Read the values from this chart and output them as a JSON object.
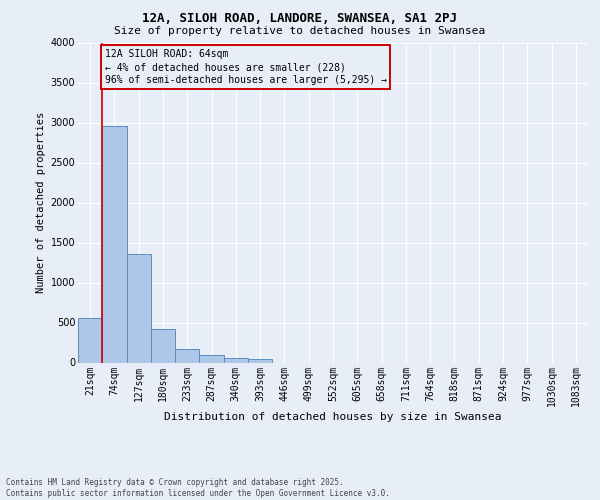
{
  "title": "12A, SILOH ROAD, LANDORE, SWANSEA, SA1 2PJ",
  "subtitle": "Size of property relative to detached houses in Swansea",
  "xlabel": "Distribution of detached houses by size in Swansea",
  "ylabel": "Number of detached properties",
  "categories": [
    "21sqm",
    "74sqm",
    "127sqm",
    "180sqm",
    "233sqm",
    "287sqm",
    "340sqm",
    "393sqm",
    "446sqm",
    "499sqm",
    "552sqm",
    "605sqm",
    "658sqm",
    "711sqm",
    "764sqm",
    "818sqm",
    "871sqm",
    "924sqm",
    "977sqm",
    "1030sqm",
    "1083sqm"
  ],
  "values": [
    560,
    2960,
    1360,
    415,
    165,
    95,
    55,
    50,
    0,
    0,
    0,
    0,
    0,
    0,
    0,
    0,
    0,
    0,
    0,
    0,
    0
  ],
  "bar_color": "#aec6e8",
  "bar_edge_color": "#5a8fc0",
  "background_color": "#e8eef7",
  "grid_color": "#ffffff",
  "annotation_box_color": "#cc0000",
  "annotation_line_color": "#cc0000",
  "annotation_text_line1": "12A SILOH ROAD: 64sqm",
  "annotation_text_line2": "← 4% of detached houses are smaller (228)",
  "annotation_text_line3": "96% of semi-detached houses are larger (5,295) →",
  "footer_line1": "Contains HM Land Registry data © Crown copyright and database right 2025.",
  "footer_line2": "Contains public sector information licensed under the Open Government Licence v3.0.",
  "ylim": [
    0,
    4000
  ],
  "yticks": [
    0,
    500,
    1000,
    1500,
    2000,
    2500,
    3000,
    3500,
    4000
  ],
  "title_fontsize": 9,
  "subtitle_fontsize": 8,
  "ylabel_fontsize": 7.5,
  "xlabel_fontsize": 8,
  "tick_fontsize": 7,
  "footer_fontsize": 5.5,
  "annotation_fontsize": 7
}
